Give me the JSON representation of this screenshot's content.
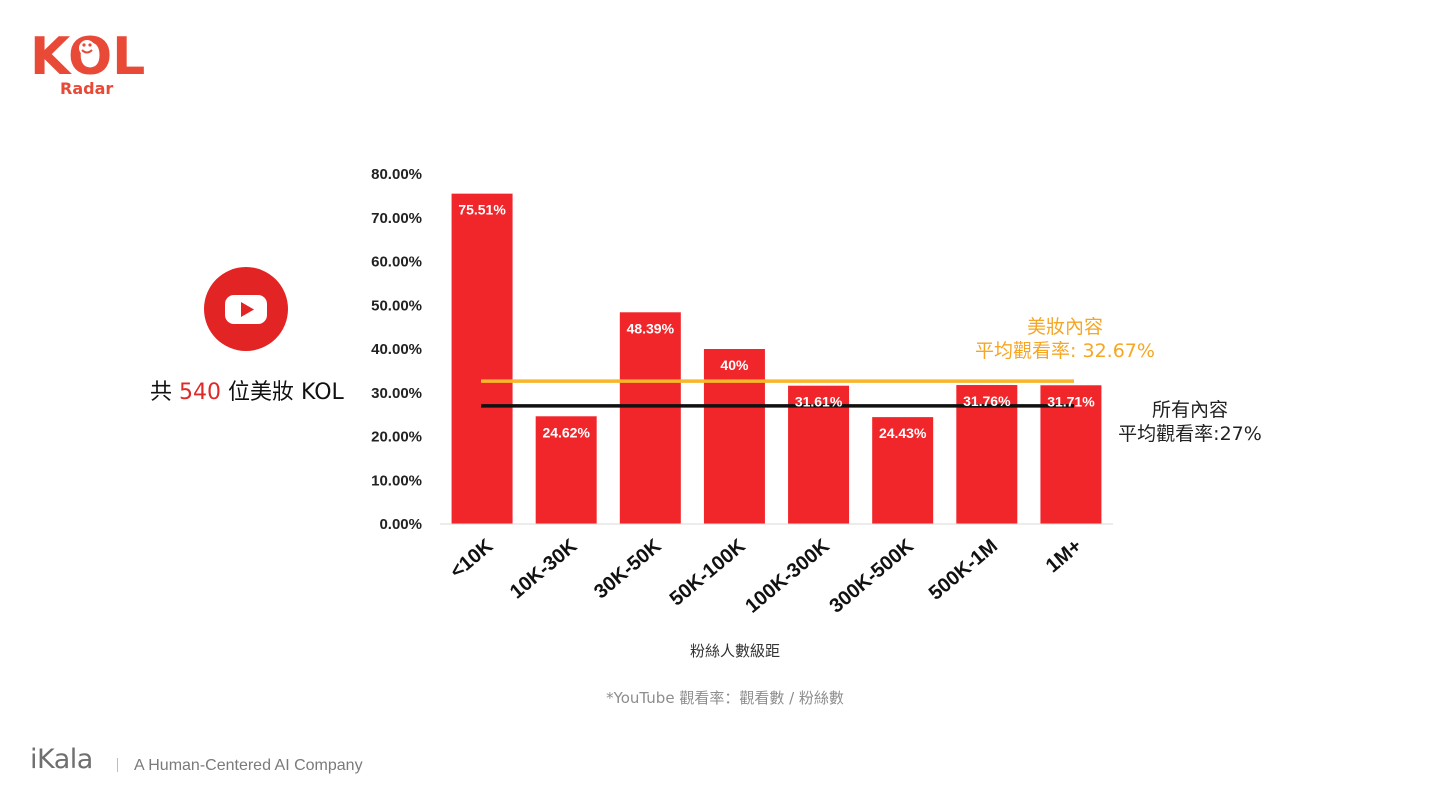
{
  "logo": {
    "text": "KOL",
    "sub": "Radar",
    "color": "#e84a37"
  },
  "platform": {
    "icon": "youtube-icon",
    "color": "#e32424"
  },
  "kol_count": {
    "prefix": "共 ",
    "number": "540",
    "suffix": " 位美妝 KOL"
  },
  "annotations": {
    "beauty": {
      "line1": "美妝內容",
      "line2": "平均觀看率: 32.67%",
      "color": "#f6a623"
    },
    "all": {
      "line1": "所有內容",
      "line2": "平均觀看率:27%",
      "color": "#111111"
    }
  },
  "note": "*YouTube 觀看率：觀看數 / 粉絲數",
  "footer": {
    "brand": "iKala",
    "tagline": "A Human-Centered AI Company"
  },
  "chart_data": {
    "type": "bar",
    "categories": [
      "<10K",
      "10K-30K",
      "30K-50K",
      "50K-100K",
      "100K-300K",
      "300K-500K",
      "500K-1M",
      "1M+"
    ],
    "values": [
      75.51,
      24.62,
      48.39,
      40,
      31.61,
      24.43,
      31.76,
      31.71
    ],
    "value_labels": [
      "75.51%",
      "24.62%",
      "48.39%",
      "40%",
      "31.61%",
      "24.43%",
      "31.76%",
      "31.71%"
    ],
    "bar_color": "#f0262b",
    "xlabel": "粉絲人數級距",
    "ylabel": "",
    "ylim": [
      0,
      80
    ],
    "yticks": [
      "0.00%",
      "10.00%",
      "20.00%",
      "30.00%",
      "40.00%",
      "50.00%",
      "60.00%",
      "70.00%",
      "80.00%"
    ],
    "reference_lines": [
      {
        "value": 32.67,
        "color": "#f8b62a"
      },
      {
        "value": 27,
        "color": "#111111"
      }
    ],
    "grid": false
  }
}
